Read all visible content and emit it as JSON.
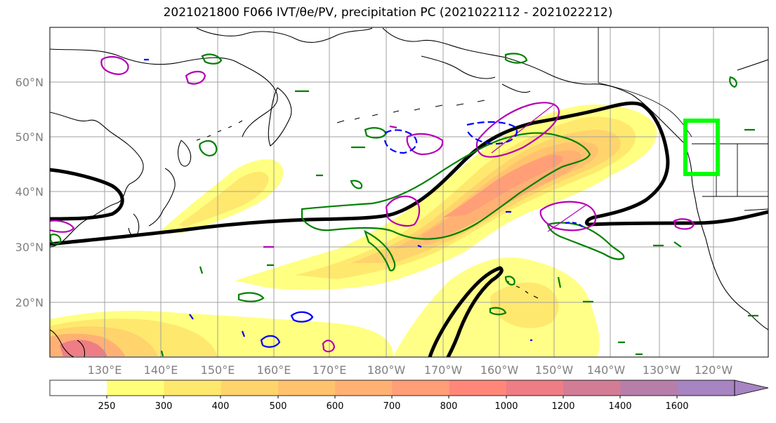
{
  "figure": {
    "title": "2021021800 F066 IVT/θe/PV, precipitation PC (2021022112 - 2021022212)"
  },
  "map": {
    "lat_labels": [
      "20°N",
      "30°N",
      "40°N",
      "50°N",
      "60°N"
    ],
    "lon_labels": [
      "130°E",
      "140°E",
      "150°E",
      "160°E",
      "170°E",
      "180°W",
      "170°W",
      "160°W",
      "150°W",
      "140°W",
      "130°W",
      "120°W"
    ]
  },
  "colorbar": {
    "ticks": [
      "250",
      "300",
      "400",
      "500",
      "600",
      "700",
      "800",
      "1000",
      "1200",
      "1400",
      "1600"
    ],
    "colors": [
      "#ffffff",
      "#ffff7a",
      "#ffe86e",
      "#ffd46c",
      "#ffc36e",
      "#ffb173",
      "#ff9e77",
      "#ff877a",
      "#ee7d85",
      "#d27c96",
      "#b77ea9",
      "#a784c2"
    ]
  },
  "contour_colors": {
    "theta_e": "#000000",
    "pv_positive": "#b400b4",
    "pv_negative": "#0000ff",
    "green_contour": "#008000",
    "target_box": "#00ff00"
  }
}
